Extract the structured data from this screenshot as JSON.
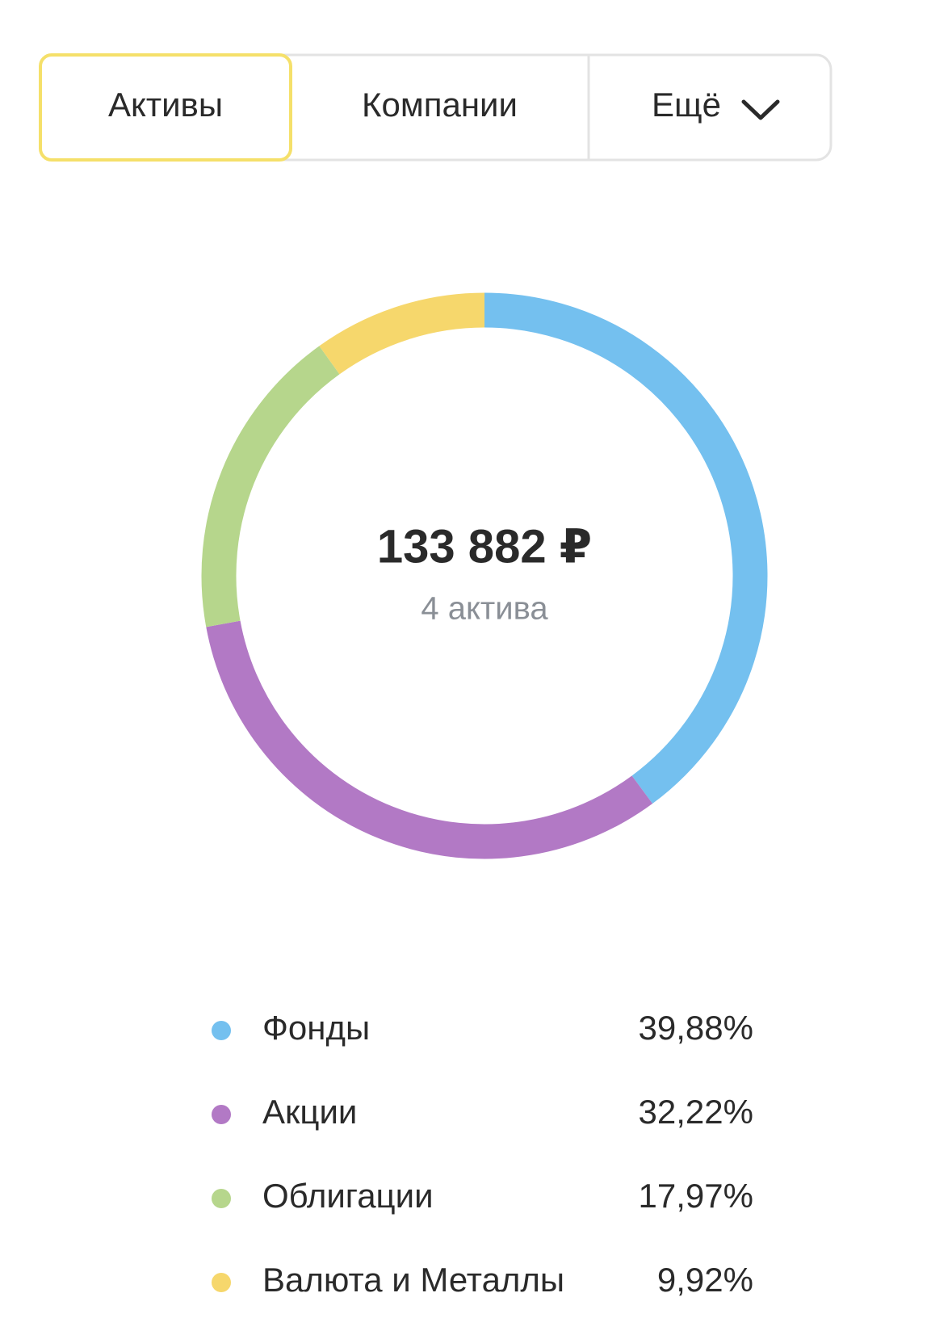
{
  "tabs": [
    "Активы",
    "Компании",
    "Ещё"
  ],
  "selected_tab": 0,
  "chart_data": {
    "type": "donut",
    "center_title": "133 882 ₽",
    "center_subtitle": "4 актива",
    "categories": [
      "Фонды",
      "Акции",
      "Облигации",
      "Валюта и Металлы"
    ],
    "values": [
      39.88,
      32.22,
      17.97,
      9.92
    ],
    "value_labels": [
      "39,88%",
      "32,22%",
      "17,97%",
      "9,92%"
    ],
    "colors": [
      "#74c0ef",
      "#b279c5",
      "#b6d68c",
      "#f6d76c"
    ]
  }
}
